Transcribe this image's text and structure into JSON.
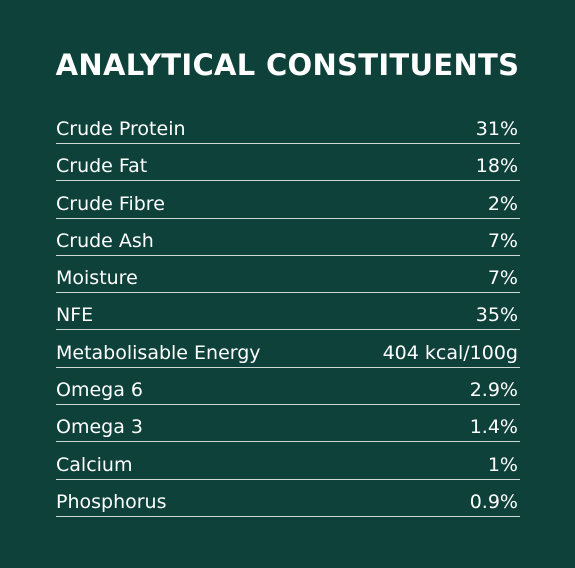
{
  "header": {
    "title": "ANALYTICAL CONSTITUENTS"
  },
  "table": {
    "rows": [
      [
        "Crude Protein",
        "31%"
      ],
      [
        "Crude Fat",
        "18%"
      ],
      [
        "Crude Fibre",
        "2%"
      ],
      [
        "Crude Ash",
        "7%"
      ],
      [
        "Moisture",
        "7%"
      ],
      [
        "NFE",
        "35%"
      ],
      [
        "Metabolisable Energy",
        "404 kcal/100g"
      ],
      [
        "Omega 6",
        "2.9%"
      ],
      [
        "Omega 3",
        "1.4%"
      ],
      [
        "Calcium",
        "1%"
      ],
      [
        "Phosphorus",
        "0.9%"
      ]
    ]
  }
}
